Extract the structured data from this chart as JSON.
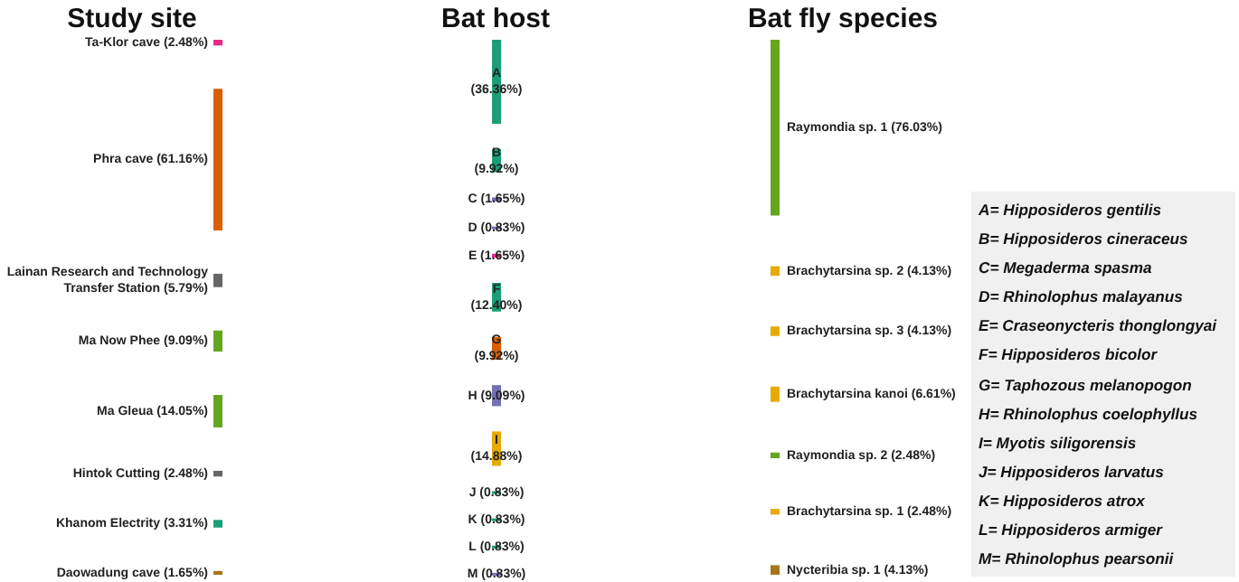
{
  "chart_data": [
    {
      "type": "other",
      "title": "Study site",
      "categories": [
        "Ta-Klor cave",
        "Phra cave",
        "Lainan Research and Technology\nTransfer Station",
        "Ma Now Phee",
        "Ma Gleua",
        "Hintok Cutting",
        "Khanom Electrity",
        "Daowadung cave"
      ],
      "values": [
        2.48,
        61.16,
        5.79,
        9.09,
        14.05,
        2.48,
        3.31,
        1.65
      ],
      "value_labels": [
        "(2.48%)",
        "(61.16%)",
        "(5.79%)",
        "(9.09%)",
        "(14.05%)",
        "(2.48%)",
        "(3.31%)",
        "(1.65%)"
      ],
      "colors": [
        "#e7298a",
        "#d95f02",
        "#666666",
        "#66a61e",
        "#66a61e",
        "#666666",
        "#1b9e77",
        "#a6761d"
      ]
    },
    {
      "type": "other",
      "title": "Bat host",
      "categories": [
        "A",
        "B",
        "C",
        "D",
        "E",
        "F",
        "G",
        "H",
        "I",
        "J",
        "K",
        "L",
        "M"
      ],
      "values": [
        36.36,
        9.92,
        1.65,
        0.83,
        1.65,
        12.4,
        9.92,
        9.09,
        14.88,
        0.83,
        0.83,
        0.83,
        0.83
      ],
      "value_labels": [
        "(36.36%)",
        "(9.92%)",
        "(1.65%)",
        "(0.83%)",
        "(1.65%)",
        "(12.40%)",
        "(9.92%)",
        "(9.09%)",
        "(14.88%)",
        "(0.83%)",
        "(0.83%)",
        "(0.83%)",
        "(0.83%)"
      ],
      "colors": [
        "#1b9e77",
        "#1b9e77",
        "#7570b3",
        "#7570b3",
        "#e7298a",
        "#1b9e77",
        "#d95f02",
        "#7570b3",
        "#e6ab02",
        "#1b9e77",
        "#1b9e77",
        "#1b9e77",
        "#7570b3"
      ],
      "annotations": [
        "A= Hipposideros gentilis",
        "B= Hipposideros cineraceus",
        "C= Megaderma spasma",
        "D= Rhinolophus malayanus",
        "E= Craseonycteris thonglongyai",
        "F= Hipposideros bicolor",
        "G= Taphozous melanopogon",
        "H= Rhinolophus coelophyllus",
        "I= Myotis siligorensis",
        "J= Hipposideros larvatus",
        "K= Hipposideros atrox",
        "L= Hipposideros armiger",
        "M= Rhinolophus pearsonii"
      ]
    },
    {
      "type": "other",
      "title": "Bat fly species",
      "categories": [
        "Raymondia sp. 1",
        "Brachytarsina sp. 2",
        "Brachytarsina sp. 3",
        "Brachytarsina kanoi",
        "Raymondia sp. 2",
        "Brachytarsina sp. 1",
        "Nycteribia sp. 1"
      ],
      "values": [
        76.03,
        4.13,
        4.13,
        6.61,
        2.48,
        2.48,
        4.13
      ],
      "value_labels": [
        "(76.03%)",
        "(4.13%)",
        "(4.13%)",
        "(6.61%)",
        "(2.48%)",
        "(2.48%)",
        "(4.13%)"
      ],
      "colors": [
        "#66a61e",
        "#e6ab02",
        "#e6ab02",
        "#e6ab02",
        "#66a61e",
        "#e6ab02",
        "#a6761d"
      ]
    }
  ]
}
